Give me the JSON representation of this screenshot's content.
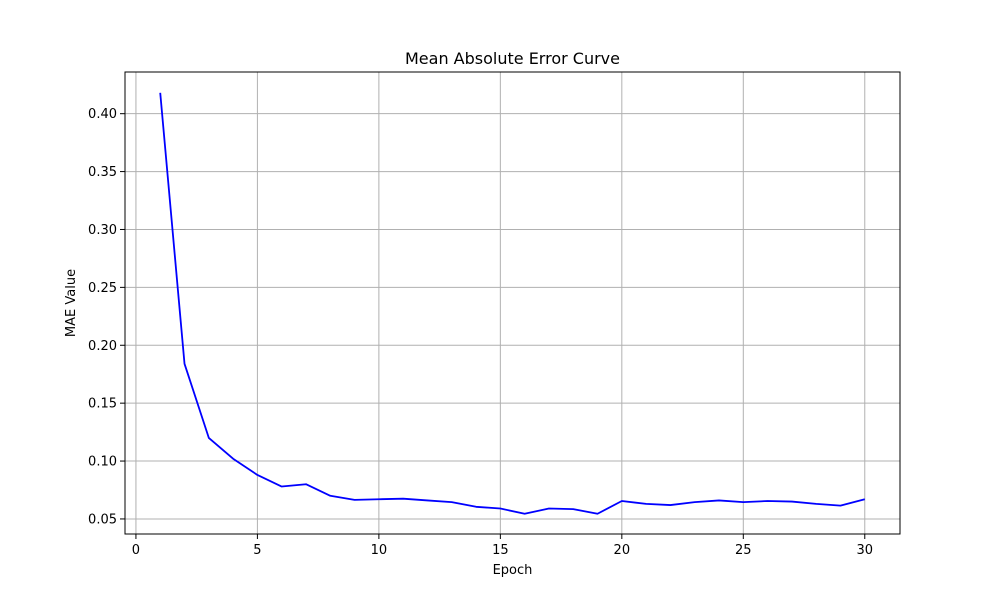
{
  "chart_data": {
    "type": "line",
    "title": "Mean Absolute Error Curve",
    "xlabel": "Epoch",
    "ylabel": "MAE Value",
    "xlim": [
      -0.45,
      31.45
    ],
    "ylim": [
      0.037,
      0.436
    ],
    "x_ticks": [
      0,
      5,
      10,
      15,
      20,
      25,
      30
    ],
    "y_ticks": [
      0.05,
      0.1,
      0.15,
      0.2,
      0.25,
      0.3,
      0.35,
      0.4
    ],
    "y_tick_labels": [
      "0.05",
      "0.10",
      "0.15",
      "0.20",
      "0.25",
      "0.30",
      "0.35",
      "0.40"
    ],
    "grid": true,
    "series": [
      {
        "color": "#0000ff",
        "x": [
          1,
          2,
          3,
          4,
          5,
          6,
          7,
          8,
          9,
          10,
          11,
          12,
          13,
          14,
          15,
          16,
          17,
          18,
          19,
          20,
          21,
          22,
          23,
          24,
          25,
          26,
          27,
          28,
          29,
          30
        ],
        "y": [
          0.418,
          0.184,
          0.12,
          0.102,
          0.088,
          0.078,
          0.08,
          0.07,
          0.0665,
          0.067,
          0.0675,
          0.066,
          0.0645,
          0.0605,
          0.059,
          0.0545,
          0.059,
          0.0585,
          0.0545,
          0.0655,
          0.063,
          0.062,
          0.0645,
          0.066,
          0.0645,
          0.0655,
          0.065,
          0.063,
          0.0615,
          0.067
        ]
      }
    ]
  }
}
